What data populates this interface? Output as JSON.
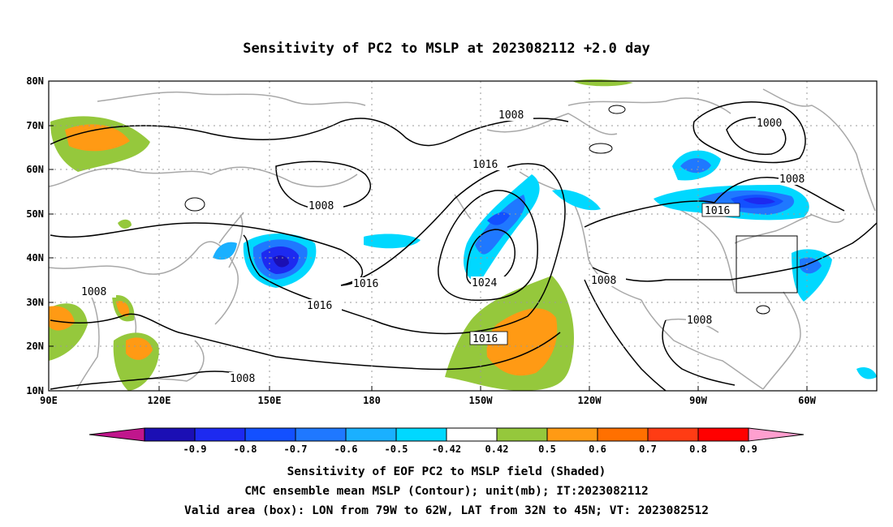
{
  "title": "Sensitivity of PC2 to MSLP at 2023082112 +2.0 day",
  "captions": [
    "Sensitivity of EOF PC2 to MSLP field (Shaded)",
    "CMC ensemble mean MSLP (Contour); unit(mb); IT:2023082112",
    "Valid area (box): LON from 79W to 62W, LAT from 32N to 45N; VT: 2023082512"
  ],
  "map": {
    "lon_ticks": [
      "90E",
      "120E",
      "150E",
      "180",
      "150W",
      "120W",
      "90W",
      "60W"
    ],
    "lat_ticks": [
      "80N",
      "70N",
      "60N",
      "50N",
      "40N",
      "30N",
      "20N",
      "10N"
    ],
    "contour_labels": [
      "1008",
      "1016",
      "1008",
      "1000",
      "1008",
      "1016",
      "1016",
      "1024",
      "1016",
      "1008",
      "1008",
      "1008",
      "1016",
      "1008"
    ],
    "valid_box": {
      "lon_west": "79W",
      "lon_east": "62W",
      "lat_south": "32N",
      "lat_north": "45N"
    }
  },
  "colorbar": {
    "labels": [
      "-0.9",
      "-0.8",
      "-0.7",
      "-0.6",
      "-0.5",
      "-0.42",
      "0.42",
      "0.5",
      "0.6",
      "0.7",
      "0.8",
      "0.9"
    ],
    "colors": [
      "#c0168c",
      "#1b0fb4",
      "#1d2af0",
      "#1350ff",
      "#1f78ff",
      "#1ab0ff",
      "#00d8ff",
      "#ffffff",
      "#95c83c",
      "#ff9a14",
      "#ff7000",
      "#ff3c14",
      "#ff0000",
      "#ff9fcf"
    ]
  },
  "colors": {
    "contour": "#000000",
    "coastline": "#a8a8a8",
    "grid": "#9a9a9a"
  }
}
